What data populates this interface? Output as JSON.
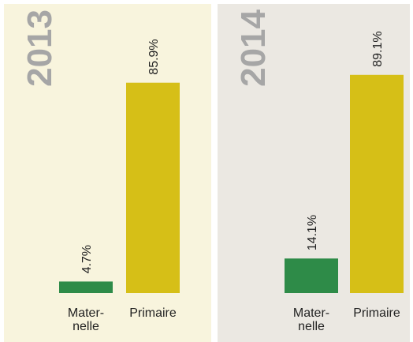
{
  "chart_data": [
    {
      "type": "bar",
      "title": "2013",
      "categories": [
        "Mater-\nnelle",
        "Primaire"
      ],
      "values": [
        4.7,
        85.9
      ],
      "value_labels": [
        "4.7%",
        "85.9%"
      ],
      "colors": [
        "#2e8b48",
        "#d6bf17"
      ]
    },
    {
      "type": "bar",
      "title": "2014",
      "categories": [
        "Mater-\nnelle",
        "Primaire"
      ],
      "values": [
        14.1,
        89.1
      ],
      "value_labels": [
        "14.1%",
        "89.1%"
      ],
      "colors": [
        "#2e8b48",
        "#d6bf17"
      ]
    }
  ]
}
